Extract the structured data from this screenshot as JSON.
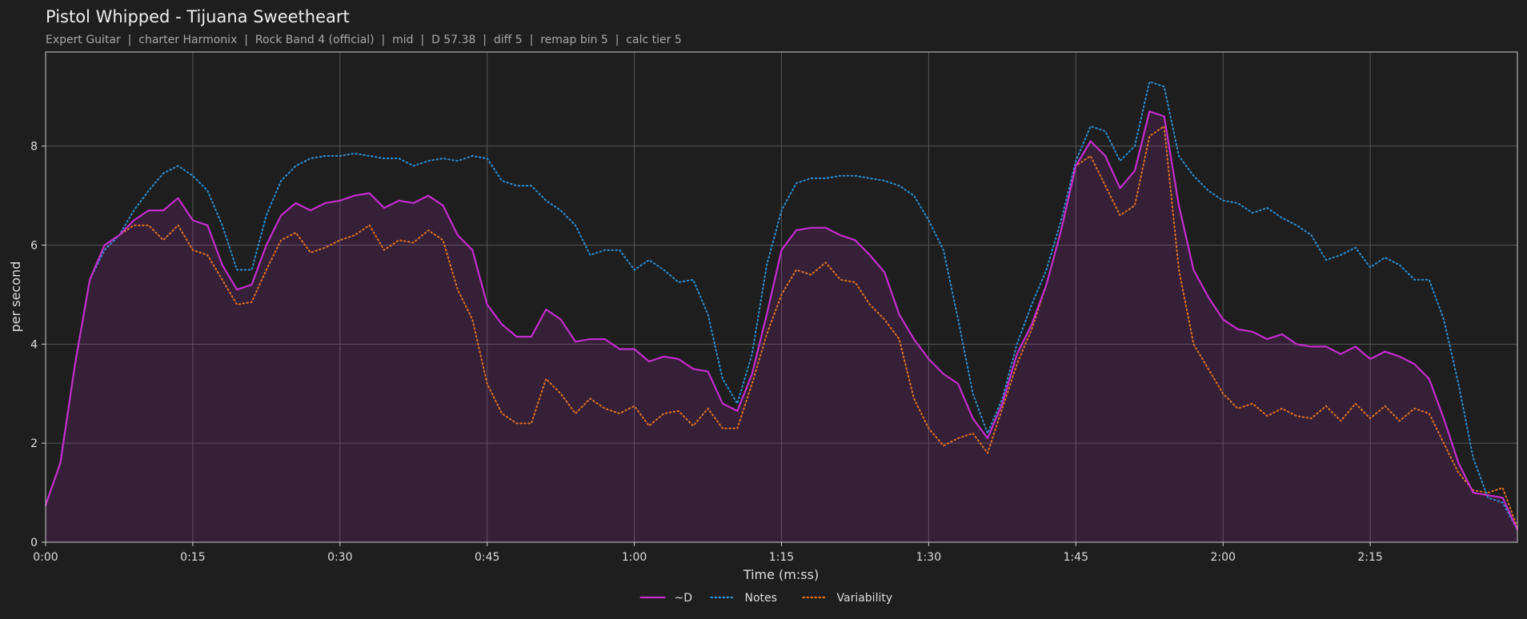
{
  "chart_data": {
    "type": "line",
    "title": "Pistol Whipped - Tijuana Sweetheart",
    "subtitle": "Expert Guitar  |  charter Harmonix  |  Rock Band 4 (official)  |  mid  |  D 57.38  |  diff 5  |  remap bin 5  |  calc tier 5",
    "xlabel": "Time (m:ss)",
    "ylabel": "per second",
    "xlim": [
      0,
      150
    ],
    "ylim": [
      0,
      9.9
    ],
    "xticks": [
      {
        "value": 0,
        "label": "0:00"
      },
      {
        "value": 15,
        "label": "0:15"
      },
      {
        "value": 30,
        "label": "0:30"
      },
      {
        "value": 45,
        "label": "0:45"
      },
      {
        "value": 60,
        "label": "1:00"
      },
      {
        "value": 75,
        "label": "1:15"
      },
      {
        "value": 90,
        "label": "1:30"
      },
      {
        "value": 105,
        "label": "1:45"
      },
      {
        "value": 120,
        "label": "2:00"
      },
      {
        "value": 135,
        "label": "2:15"
      }
    ],
    "yticks": [
      0,
      2,
      4,
      6,
      8
    ],
    "grid": true,
    "legend": "bottom",
    "x": [
      0,
      1.5,
      3,
      4.5,
      6,
      7.5,
      9,
      10.5,
      12,
      13.5,
      15,
      16.5,
      18,
      19.5,
      21,
      22.5,
      24,
      25.5,
      27,
      28.5,
      30,
      31.5,
      33,
      34.5,
      36,
      37.5,
      39,
      40.5,
      42,
      43.5,
      45,
      46.5,
      48,
      49.5,
      51,
      52.5,
      54,
      55.5,
      57,
      58.5,
      60,
      61.5,
      63,
      64.5,
      66,
      67.5,
      69,
      70.5,
      72,
      73.5,
      75,
      76.5,
      78,
      79.5,
      81,
      82.5,
      84,
      85.5,
      87,
      88.5,
      90,
      91.5,
      93,
      94.5,
      96,
      97.5,
      99,
      100.5,
      102,
      103.5,
      105,
      106.5,
      108,
      109.5,
      111,
      112.5,
      114,
      115.5,
      117,
      118.5,
      120,
      121.5,
      123,
      124.5,
      126,
      127.5,
      129,
      130.5,
      132,
      133.5,
      135,
      136.5,
      138,
      139.5,
      141,
      142.5,
      144,
      145.5,
      147,
      148.5,
      150
    ],
    "series": [
      {
        "name": "~D",
        "color": "#c42ccc",
        "style": "solid",
        "area": true,
        "values": [
          0.75,
          1.6,
          3.6,
          5.3,
          6.0,
          6.2,
          6.5,
          6.7,
          6.7,
          6.95,
          6.5,
          6.4,
          5.6,
          5.1,
          5.2,
          6.0,
          6.6,
          6.85,
          6.7,
          6.85,
          6.9,
          7.0,
          7.05,
          6.75,
          6.9,
          6.85,
          7.0,
          6.8,
          6.2,
          5.9,
          4.8,
          4.4,
          4.15,
          4.15,
          4.7,
          4.5,
          4.05,
          4.1,
          4.1,
          3.9,
          3.9,
          3.65,
          3.75,
          3.7,
          3.5,
          3.45,
          2.8,
          2.65,
          3.4,
          4.6,
          5.9,
          6.3,
          6.35,
          6.35,
          6.2,
          6.1,
          5.8,
          5.45,
          4.6,
          4.1,
          3.7,
          3.4,
          3.2,
          2.5,
          2.1,
          2.8,
          3.8,
          4.4,
          5.2,
          6.3,
          7.6,
          8.1,
          7.8,
          7.15,
          7.5,
          8.7,
          8.6,
          6.8,
          5.5,
          4.95,
          4.5,
          4.3,
          4.25,
          4.1,
          4.2,
          4.0,
          3.95,
          3.95,
          3.8,
          3.95,
          3.7,
          3.85,
          3.75,
          3.6,
          3.3,
          2.5,
          1.6,
          1.0,
          0.95,
          0.9,
          0.25
        ]
      },
      {
        "name": "Notes",
        "color": "#2b8fd2",
        "style": "dotted",
        "area": false,
        "values": [
          0.75,
          1.6,
          3.6,
          5.3,
          5.9,
          6.2,
          6.7,
          7.1,
          7.45,
          7.6,
          7.4,
          7.1,
          6.4,
          5.5,
          5.5,
          6.6,
          7.3,
          7.6,
          7.75,
          7.8,
          7.8,
          7.85,
          7.8,
          7.75,
          7.75,
          7.6,
          7.7,
          7.75,
          7.7,
          7.8,
          7.75,
          7.3,
          7.2,
          7.2,
          6.9,
          6.7,
          6.4,
          5.8,
          5.9,
          5.9,
          5.5,
          5.7,
          5.5,
          5.25,
          5.3,
          4.6,
          3.3,
          2.8,
          3.8,
          5.6,
          6.7,
          7.25,
          7.35,
          7.35,
          7.4,
          7.4,
          7.35,
          7.3,
          7.2,
          7.0,
          6.5,
          5.9,
          4.5,
          3.0,
          2.2,
          2.9,
          4.0,
          4.8,
          5.5,
          6.5,
          7.7,
          8.4,
          8.3,
          7.7,
          8.0,
          9.3,
          9.2,
          7.8,
          7.4,
          7.1,
          6.9,
          6.85,
          6.65,
          6.75,
          6.55,
          6.4,
          6.2,
          5.7,
          5.8,
          5.95,
          5.55,
          5.75,
          5.6,
          5.3,
          5.3,
          4.5,
          3.2,
          1.7,
          0.9,
          0.8,
          0.25
        ]
      },
      {
        "name": "Variability",
        "color": "#e07222",
        "style": "dotted",
        "area": false,
        "values": [
          0.75,
          1.6,
          3.6,
          5.3,
          6.0,
          6.2,
          6.4,
          6.4,
          6.1,
          6.4,
          5.9,
          5.8,
          5.3,
          4.8,
          4.85,
          5.5,
          6.1,
          6.25,
          5.85,
          5.95,
          6.1,
          6.2,
          6.4,
          5.9,
          6.1,
          6.05,
          6.3,
          6.1,
          5.1,
          4.5,
          3.2,
          2.6,
          2.4,
          2.4,
          3.3,
          3.0,
          2.6,
          2.9,
          2.7,
          2.6,
          2.75,
          2.35,
          2.6,
          2.65,
          2.35,
          2.7,
          2.3,
          2.3,
          3.2,
          4.2,
          5.0,
          5.5,
          5.4,
          5.65,
          5.3,
          5.25,
          4.8,
          4.5,
          4.1,
          2.9,
          2.3,
          1.95,
          2.1,
          2.2,
          1.8,
          2.7,
          3.6,
          4.3,
          5.2,
          6.3,
          7.6,
          7.8,
          7.2,
          6.6,
          6.8,
          8.2,
          8.4,
          5.5,
          4.0,
          3.5,
          3.0,
          2.7,
          2.8,
          2.55,
          2.7,
          2.55,
          2.5,
          2.75,
          2.45,
          2.8,
          2.5,
          2.75,
          2.45,
          2.7,
          2.6,
          2.0,
          1.4,
          1.05,
          1.0,
          1.1,
          0.3
        ]
      }
    ]
  }
}
